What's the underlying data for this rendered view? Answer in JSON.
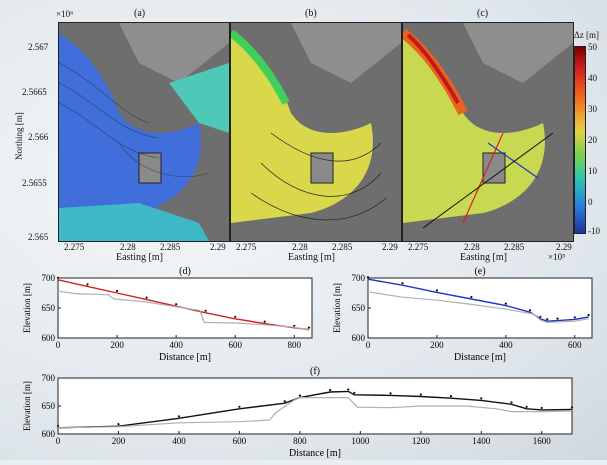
{
  "maps": {
    "panels": [
      {
        "label": "(a)"
      },
      {
        "label": "(b)"
      },
      {
        "label": "(c)"
      }
    ],
    "y_exponent": "×10⁶",
    "x_exponent": "×10⁵",
    "y_label": "Northing [m]",
    "x_label": "Easting [m]",
    "y_ticks": [
      "2.567",
      "2.5665",
      "2.566",
      "2.5655",
      "2.565"
    ],
    "x_ticks": [
      "2.275",
      "2.28",
      "2.285",
      "2.29"
    ],
    "colorbar": {
      "title": "Δz [m]",
      "ticks": [
        "50",
        "40",
        "30",
        "20",
        "10",
        "0",
        "-10"
      ],
      "range": [
        -10,
        50
      ]
    }
  },
  "chart_data": [
    {
      "type": "line",
      "label": "(d)",
      "xlabel": "Distance [m]",
      "ylabel": "Elevation [m]",
      "xlim": [
        0,
        860
      ],
      "ylim": [
        600,
        700
      ],
      "x_ticks": [
        "0",
        "200",
        "400",
        "600",
        "800"
      ],
      "y_ticks": [
        "700",
        "650",
        "600"
      ],
      "series": [
        {
          "color": "#d42020",
          "x": [
            0,
            100,
            200,
            300,
            400,
            500,
            600,
            700,
            800,
            850
          ],
          "y": [
            697,
            686,
            675,
            664,
            653,
            642,
            632,
            624,
            617,
            614
          ]
        },
        {
          "color": "#b0b0b0",
          "x": [
            0,
            60,
            170,
            190,
            300,
            400,
            480,
            495,
            600,
            700,
            800,
            850
          ],
          "y": [
            678,
            674,
            672,
            665,
            660,
            652,
            646,
            626,
            625,
            622,
            618,
            613
          ]
        }
      ]
    },
    {
      "type": "line",
      "label": "(e)",
      "xlabel": "Distance [m]",
      "ylabel": "Elevation [m]",
      "xlim": [
        0,
        650
      ],
      "ylim": [
        600,
        700
      ],
      "x_ticks": [
        "0",
        "200",
        "400",
        "600"
      ],
      "y_ticks": [
        "700",
        "650",
        "600"
      ],
      "series": [
        {
          "color": "#2233cc",
          "x": [
            0,
            100,
            200,
            300,
            400,
            470,
            500,
            520,
            550,
            600,
            640
          ],
          "y": [
            698,
            688,
            676,
            665,
            654,
            643,
            632,
            628,
            629,
            631,
            635
          ]
        },
        {
          "color": "#b0b0b0",
          "x": [
            0,
            100,
            200,
            300,
            400,
            480,
            500,
            520,
            600,
            640
          ],
          "y": [
            677,
            668,
            663,
            656,
            648,
            640,
            630,
            626,
            628,
            632
          ]
        }
      ]
    },
    {
      "type": "line",
      "label": "(f)",
      "xlabel": "Distance [m]",
      "ylabel": "Elevation [m]",
      "xlim": [
        0,
        1700
      ],
      "ylim": [
        600,
        700
      ],
      "x_ticks": [
        "0",
        "200",
        "400",
        "600",
        "800",
        "1000",
        "1200",
        "1400",
        "1600"
      ],
      "y_ticks": [
        "700",
        "650",
        "600"
      ],
      "series": [
        {
          "color": "#111111",
          "x": [
            0,
            200,
            400,
            600,
            750,
            800,
            900,
            960,
            980,
            1100,
            1200,
            1300,
            1400,
            1500,
            1550,
            1600,
            1700
          ],
          "y": [
            611,
            614,
            628,
            645,
            655,
            665,
            675,
            676,
            670,
            669,
            667,
            664,
            660,
            653,
            645,
            643,
            644
          ]
        },
        {
          "color": "#b0b0b0",
          "x": [
            0,
            200,
            400,
            600,
            700,
            720,
            780,
            800,
            960,
            990,
            1100,
            1200,
            1350,
            1450,
            1500,
            1600,
            1700
          ],
          "y": [
            611,
            613,
            620,
            622,
            625,
            638,
            660,
            665,
            665,
            648,
            647,
            650,
            650,
            645,
            640,
            640,
            641
          ]
        }
      ]
    }
  ]
}
